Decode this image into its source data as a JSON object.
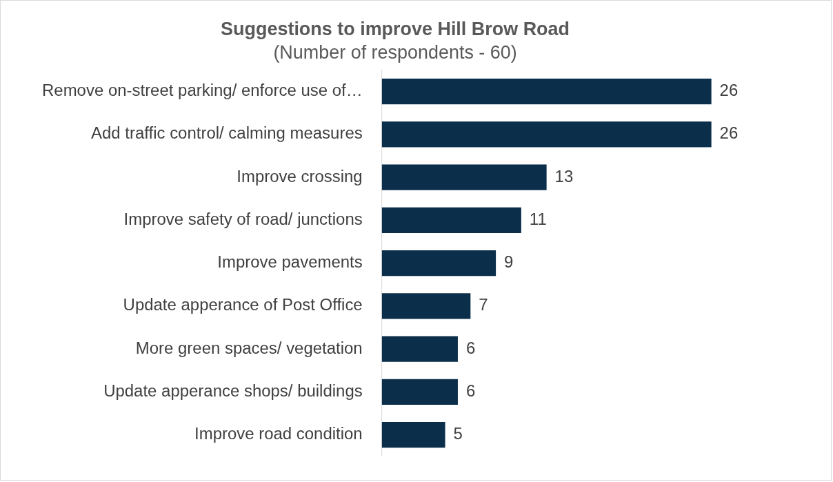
{
  "chart_data": {
    "type": "bar",
    "orientation": "horizontal",
    "title": "Suggestions to improve Hill Brow Road",
    "subtitle": "(Number of respondents - 60)",
    "categories": [
      "Remove on-street parking/ enforce use of…",
      "Add traffic control/ calming measures",
      "Improve crossing",
      "Improve safety of road/ junctions",
      "Improve pavements",
      "Update apperance of Post Office",
      "More green spaces/ vegetation",
      "Update apperance shops/ buildings",
      "Improve road condition"
    ],
    "values": [
      26,
      26,
      13,
      11,
      9,
      7,
      6,
      6,
      5
    ],
    "color": "#0b2e4b",
    "data_labels": true,
    "grid": false,
    "legend": false,
    "tick_labels": "y"
  }
}
